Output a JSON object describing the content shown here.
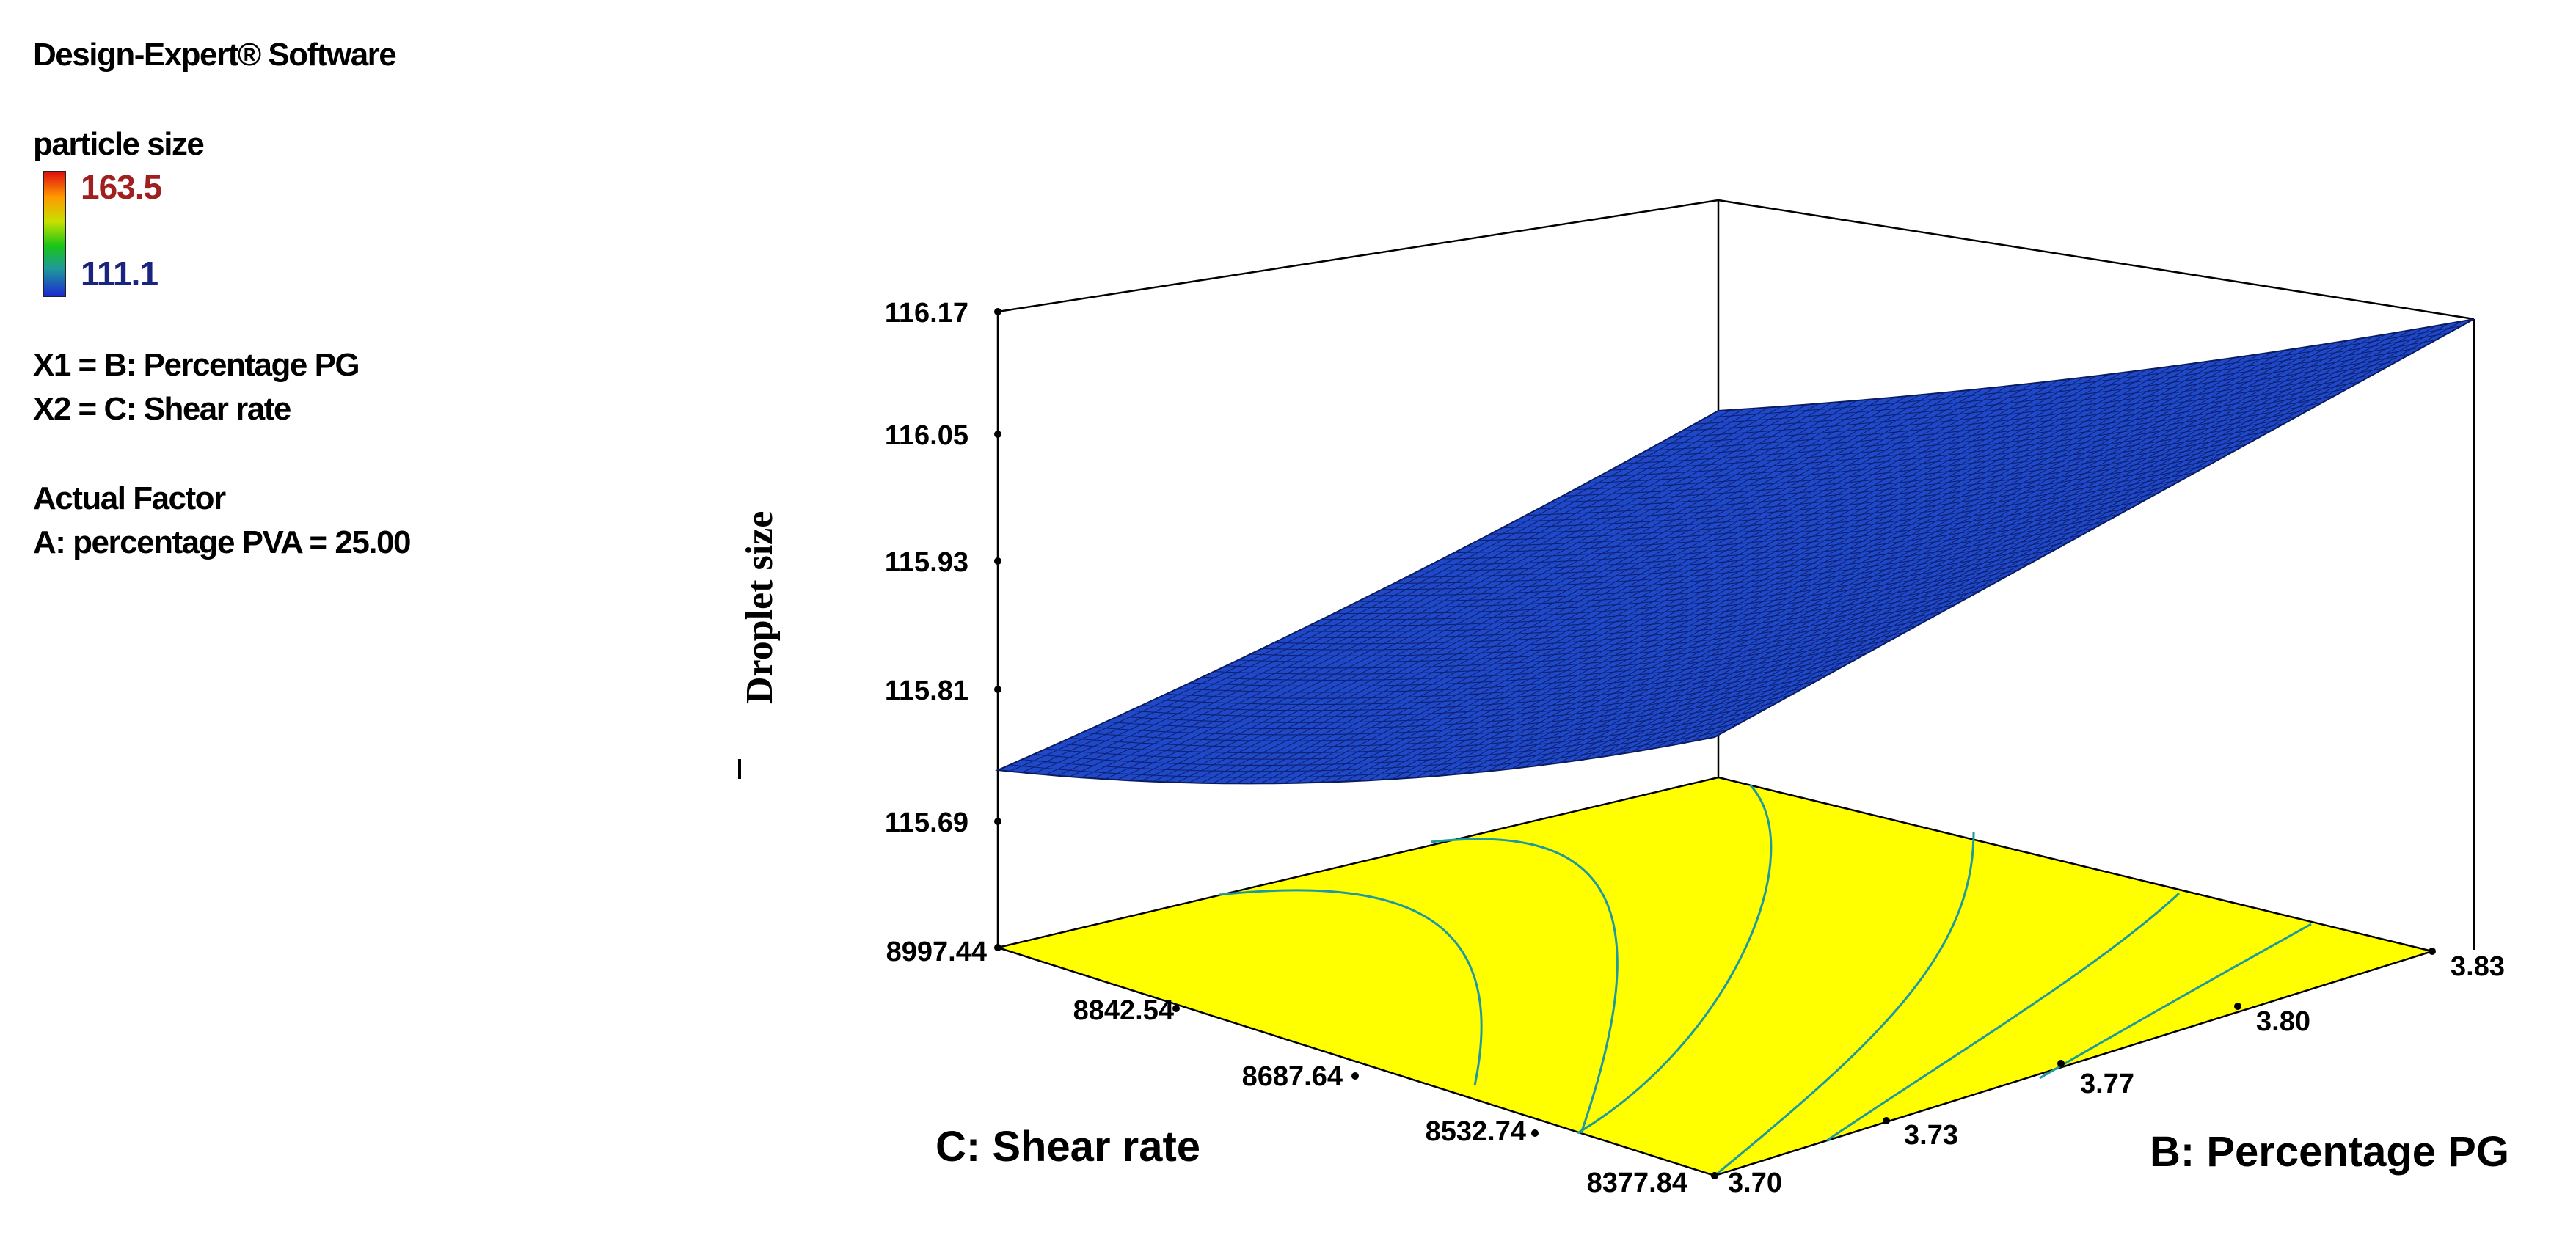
{
  "software": "Design-Expert® Software",
  "legend": {
    "title": "particle size",
    "high": "163.5",
    "low": "111.1",
    "colors": [
      "#e01010",
      "#ff9a00",
      "#c8e000",
      "#18c418",
      "#1f9a9a",
      "#1c2bd0"
    ]
  },
  "factors": {
    "x1": "X1 = B: Percentage PG",
    "x2": "X2 = C: Shear rate"
  },
  "actual_factor": {
    "heading": "Actual Factor",
    "value": "A: percentage PVA = 25.00"
  },
  "chart_data": {
    "type": "surface",
    "zlabel": "Droplet size",
    "xlabel": "B: Percentage PG",
    "ylabel": "C: Shear rate",
    "x_ticks": [
      "3.70",
      "3.73",
      "3.77",
      "3.80",
      "3.83"
    ],
    "y_ticks": [
      "8377.84",
      "8532.74",
      "8687.64",
      "8842.54",
      "8997.44"
    ],
    "z_ticks": [
      "115.69",
      "115.81",
      "115.93",
      "116.05",
      "116.17"
    ],
    "xlim": [
      3.7,
      3.83
    ],
    "ylim": [
      8377.84,
      8997.44
    ],
    "zlim": [
      115.69,
      116.17
    ],
    "surface_color": "#1f49c8",
    "floor_color": "#ffff00",
    "contour_color": "#1f9a9a"
  }
}
